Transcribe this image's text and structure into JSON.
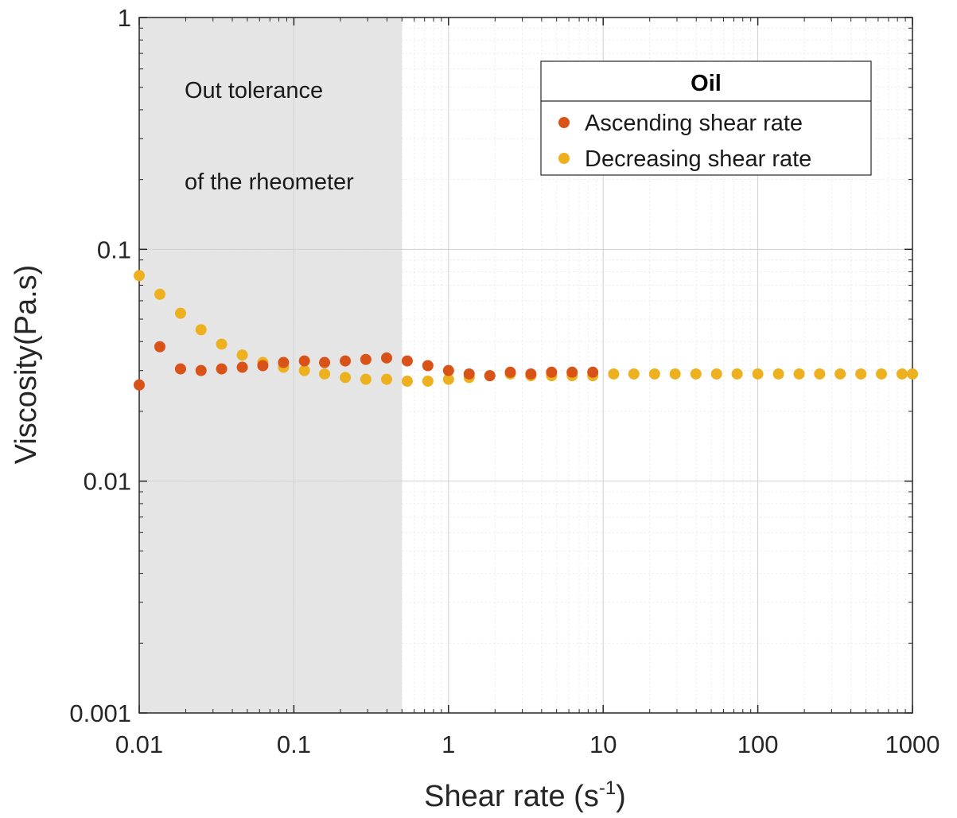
{
  "chart_data": {
    "type": "scatter",
    "xlabel": "Shear rate (s",
    "xlabel_superscript": "-1",
    "xlabel_suffix": ")",
    "ylabel": "Viscosity(Pa.s)",
    "x_scale": "log",
    "y_scale": "log",
    "xlim": [
      0.01,
      1000
    ],
    "ylim": [
      0.001,
      1
    ],
    "x_ticks": [
      "0.01",
      "0.1",
      "1",
      "10",
      "100",
      "1000"
    ],
    "y_ticks": [
      "0.001",
      "0.01",
      "0.1",
      "1"
    ],
    "grid": true,
    "shaded_region": {
      "x_range": [
        0.01,
        0.5
      ],
      "color": "#e5e5e5",
      "label_lines": [
        "Out tolerance",
        "of the rheometer"
      ]
    },
    "legend": {
      "title": "Oil",
      "position": "top-right"
    },
    "series": [
      {
        "name": "Ascending shear rate",
        "color": "#d95319",
        "x": [
          0.01,
          0.0136,
          0.0185,
          0.0251,
          0.0341,
          0.0464,
          0.063,
          0.0857,
          0.117,
          0.158,
          0.215,
          0.292,
          0.398,
          0.541,
          0.735,
          1.0,
          1.36,
          1.85,
          2.51,
          3.41,
          4.64,
          6.3,
          8.57
        ],
        "y": [
          0.026,
          0.038,
          0.0305,
          0.03,
          0.0305,
          0.031,
          0.0315,
          0.0325,
          0.033,
          0.0325,
          0.033,
          0.0335,
          0.034,
          0.033,
          0.0315,
          0.03,
          0.029,
          0.0285,
          0.0295,
          0.029,
          0.0295,
          0.0295,
          0.0295
        ]
      },
      {
        "name": "Decreasing shear rate",
        "color": "#edb120",
        "x": [
          0.01,
          0.0136,
          0.0185,
          0.0251,
          0.0341,
          0.0464,
          0.063,
          0.0857,
          0.117,
          0.158,
          0.215,
          0.292,
          0.398,
          0.541,
          0.735,
          1.0,
          1.36,
          1.85,
          2.51,
          3.41,
          4.64,
          6.3,
          8.57,
          11.7,
          15.8,
          21.5,
          29.2,
          39.8,
          54.1,
          73.5,
          100,
          136,
          185,
          251,
          341,
          464,
          630,
          857,
          1000
        ],
        "y": [
          0.077,
          0.064,
          0.053,
          0.045,
          0.039,
          0.035,
          0.0325,
          0.031,
          0.03,
          0.029,
          0.028,
          0.0275,
          0.0275,
          0.027,
          0.027,
          0.0275,
          0.028,
          0.0285,
          0.029,
          0.0285,
          0.0285,
          0.0285,
          0.0285,
          0.029,
          0.029,
          0.029,
          0.029,
          0.029,
          0.029,
          0.029,
          0.029,
          0.029,
          0.029,
          0.029,
          0.029,
          0.029,
          0.029,
          0.029,
          0.029
        ]
      }
    ]
  }
}
